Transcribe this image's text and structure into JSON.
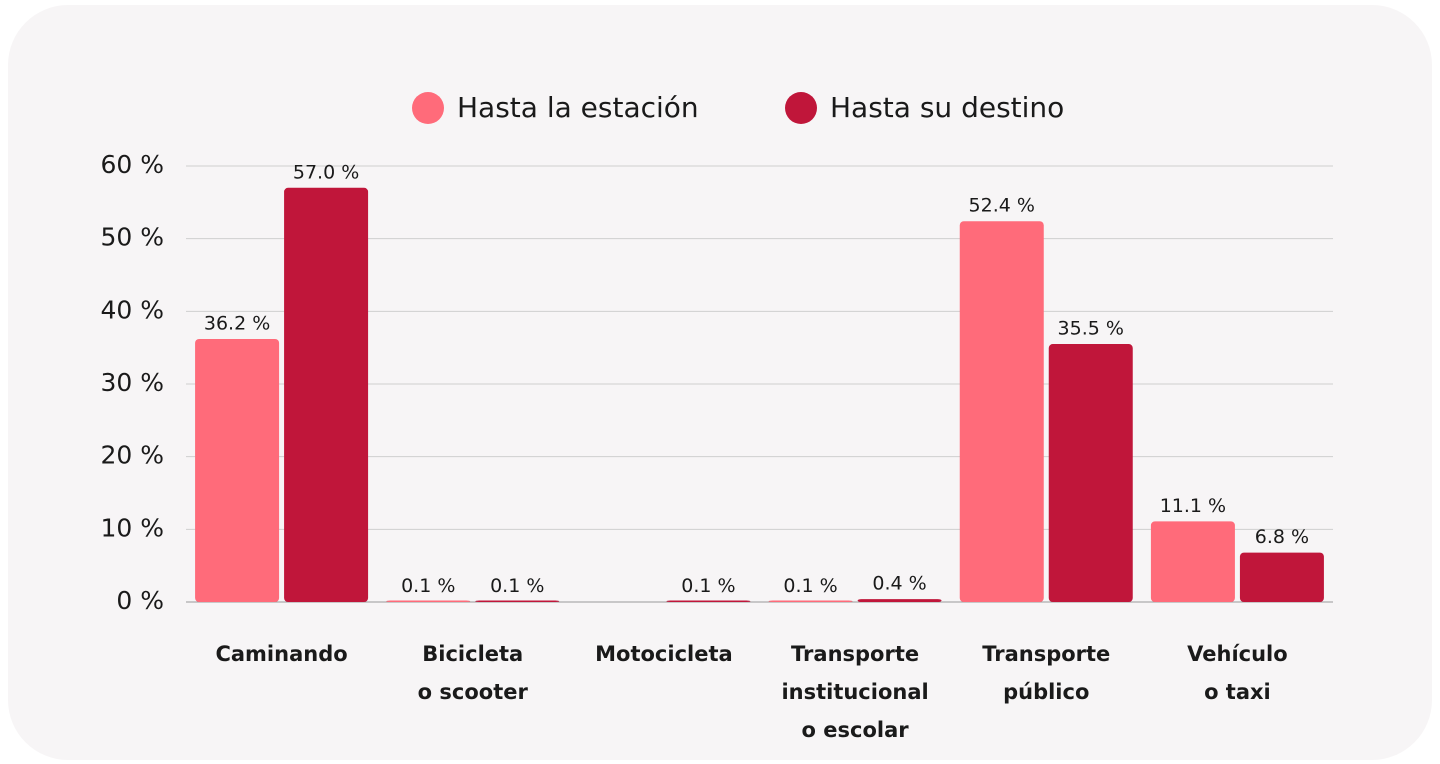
{
  "chart_data": {
    "type": "bar",
    "categories": [
      [
        "Caminando"
      ],
      [
        "Bicicleta",
        "o scooter"
      ],
      [
        "Motocicleta"
      ],
      [
        "Transporte",
        "institucional",
        "o escolar"
      ],
      [
        "Transporte",
        "público"
      ],
      [
        "Vehículo",
        "o taxi"
      ]
    ],
    "series": [
      {
        "name": "Hasta la estación",
        "color": "#ff6b7a",
        "values": [
          36.2,
          0.1,
          null,
          0.1,
          52.4,
          11.1
        ],
        "value_labels": [
          "36.2 %",
          "0.1 %",
          null,
          "0.1 %",
          "52.4 %",
          "11.1 %"
        ]
      },
      {
        "name": "Hasta su destino",
        "color": "#c0163a",
        "values": [
          57.0,
          0.1,
          0.1,
          0.4,
          35.5,
          6.8
        ],
        "value_labels": [
          "57.0 %",
          "0.1 %",
          "0.1 %",
          "0.4 %",
          "35.5 %",
          "6.8 %"
        ]
      }
    ],
    "ylim": [
      0,
      60
    ],
    "yticks": [
      {
        "value": 0,
        "label": "0 %"
      },
      {
        "value": 10,
        "label": "10 %"
      },
      {
        "value": 20,
        "label": "20 %"
      },
      {
        "value": 30,
        "label": "30 %"
      },
      {
        "value": 40,
        "label": "40 %"
      },
      {
        "value": 50,
        "label": "50 %"
      },
      {
        "value": 60,
        "label": "60 %"
      }
    ],
    "grid": true,
    "legend": "top"
  }
}
